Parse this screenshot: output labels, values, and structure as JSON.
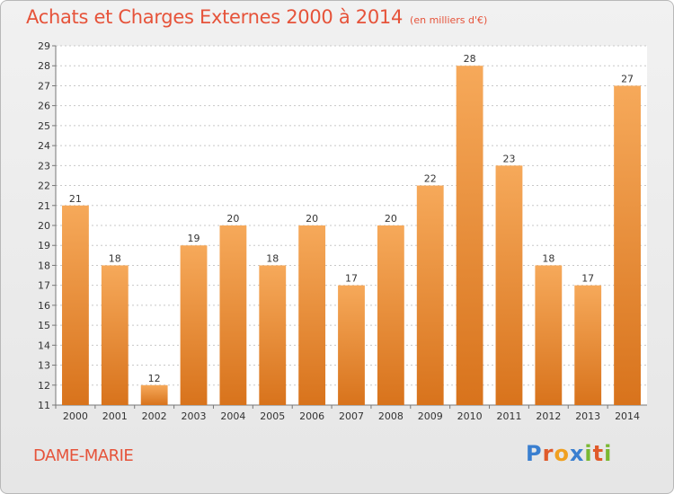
{
  "title": "Achats et Charges Externes 2000 à 2014",
  "unit": "(en milliers d'€)",
  "town": "DAME-MARIE",
  "logo": {
    "text": "Proxiti",
    "letter_colors": [
      "#3a7fd0",
      "#e05a2a",
      "#f0a020",
      "#3a7fd0",
      "#7ab832",
      "#e05a2a",
      "#7ab832"
    ]
  },
  "colors": {
    "title": "#e6533a",
    "bar_top": "#f6a95a",
    "bar_bottom": "#d8731c",
    "grid": "#c8c8c8"
  },
  "chart_data": {
    "type": "bar",
    "categories": [
      "2000",
      "2001",
      "2002",
      "2003",
      "2004",
      "2005",
      "2006",
      "2007",
      "2008",
      "2009",
      "2010",
      "2011",
      "2012",
      "2013",
      "2014"
    ],
    "values": [
      21,
      18,
      12,
      19,
      20,
      18,
      20,
      17,
      20,
      22,
      28,
      23,
      18,
      17,
      27
    ],
    "title": "Achats et Charges Externes 2000 à 2014",
    "xlabel": "",
    "ylabel": "",
    "ylim": [
      11,
      29
    ],
    "yticks": [
      11,
      12,
      13,
      14,
      15,
      16,
      17,
      18,
      19,
      20,
      21,
      22,
      23,
      24,
      25,
      26,
      27,
      28,
      29
    ],
    "grid": true,
    "legend": "none"
  }
}
